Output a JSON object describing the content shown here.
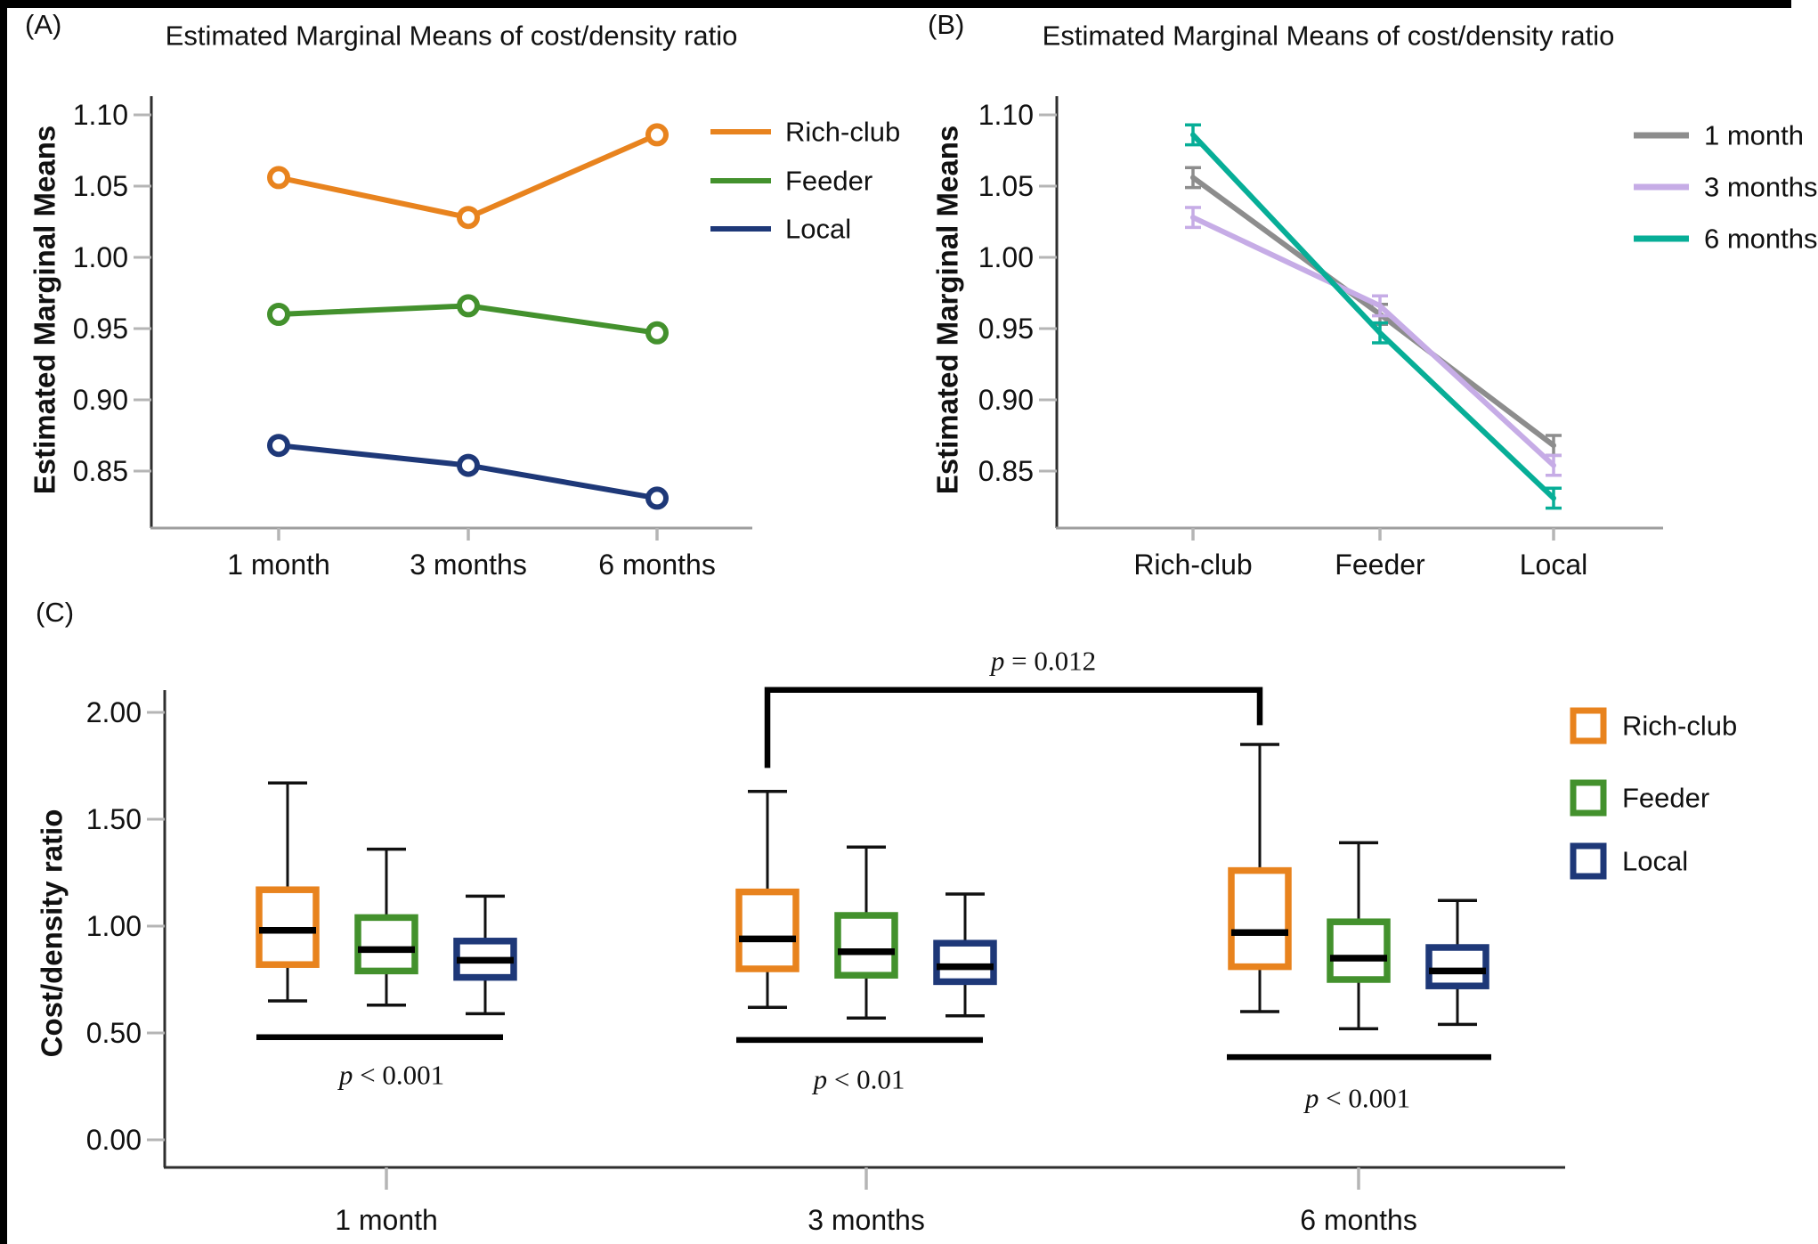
{
  "figure": {
    "panels": {
      "a": {
        "label": "(A)"
      },
      "b": {
        "label": "(B)"
      },
      "c": {
        "label": "(C)"
      }
    }
  },
  "colors": {
    "rich_club": "#E8831E",
    "feeder": "#43912D",
    "local": "#1E3878",
    "one_month": "#8D8D8D",
    "three_months": "#C6ACE6",
    "six_months": "#07AE97",
    "axis_dark": "#2e2e2e",
    "axis_gray": "#9e9e9e",
    "tick_gray": "#b5b5b5",
    "median_black": "#000000"
  },
  "chart_data": [
    {
      "id": "A",
      "type": "line",
      "title": "Estimated Marginal Means of cost/density ratio",
      "ylabel": "Estimated Marginal Means",
      "xlabel": "",
      "categories": [
        "1 month",
        "3 months",
        "6 months"
      ],
      "ylim": [
        0.81,
        1.11
      ],
      "grid": false,
      "legend_position": "right",
      "marker": "open-circle",
      "yticks": [
        {
          "v": 1.1,
          "label": "1.10"
        },
        {
          "v": 1.05,
          "label": "1.05"
        },
        {
          "v": 1.0,
          "label": "1.00"
        },
        {
          "v": 0.95,
          "label": "0.95"
        },
        {
          "v": 0.9,
          "label": "0.90"
        },
        {
          "v": 0.85,
          "label": "0.85"
        }
      ],
      "series": [
        {
          "name": "Rich-club",
          "color_key": "rich_club",
          "values": [
            1.056,
            1.028,
            1.086
          ]
        },
        {
          "name": "Feeder",
          "color_key": "feeder",
          "values": [
            0.96,
            0.966,
            0.947
          ]
        },
        {
          "name": "Local",
          "color_key": "local",
          "values": [
            0.868,
            0.854,
            0.831
          ]
        }
      ]
    },
    {
      "id": "B",
      "type": "line",
      "title": "Estimated Marginal Means of cost/density ratio",
      "ylabel": "Estimated Marginal Means",
      "xlabel": "",
      "categories": [
        "Rich-club",
        "Feeder",
        "Local"
      ],
      "ylim": [
        0.81,
        1.11
      ],
      "grid": false,
      "legend_position": "right",
      "marker": "error-caps",
      "error": 0.007,
      "yticks": [
        {
          "v": 1.1,
          "label": "1.10"
        },
        {
          "v": 1.05,
          "label": "1.05"
        },
        {
          "v": 1.0,
          "label": "1.00"
        },
        {
          "v": 0.95,
          "label": "0.95"
        },
        {
          "v": 0.9,
          "label": "0.90"
        },
        {
          "v": 0.85,
          "label": "0.85"
        }
      ],
      "series": [
        {
          "name": "1 month",
          "color_key": "one_month",
          "values": [
            1.056,
            0.96,
            0.868
          ]
        },
        {
          "name": "3 months",
          "color_key": "three_months",
          "values": [
            1.028,
            0.966,
            0.854
          ]
        },
        {
          "name": "6 months",
          "color_key": "six_months",
          "values": [
            1.086,
            0.947,
            0.831
          ]
        }
      ]
    },
    {
      "id": "C",
      "type": "boxplot",
      "title": "",
      "ylabel": "Cost/density ratio",
      "xlabel": "",
      "categories": [
        "1 month",
        "3 months",
        "6 months"
      ],
      "ylim": [
        -0.13,
        2.1
      ],
      "grid": false,
      "legend_position": "right",
      "yticks": [
        {
          "v": 2.0,
          "label": "2.00"
        },
        {
          "v": 1.5,
          "label": "1.50"
        },
        {
          "v": 1.0,
          "label": "1.00"
        },
        {
          "v": 0.5,
          "label": "0.50"
        },
        {
          "v": 0.0,
          "label": "0.00"
        }
      ],
      "series": [
        {
          "name": "Rich-club",
          "color_key": "rich_club",
          "boxes": [
            {
              "min": 0.65,
              "q1": 0.82,
              "median": 0.98,
              "q3": 1.17,
              "max": 1.67
            },
            {
              "min": 0.62,
              "q1": 0.8,
              "median": 0.94,
              "q3": 1.16,
              "max": 1.63
            },
            {
              "min": 0.6,
              "q1": 0.81,
              "median": 0.97,
              "q3": 1.26,
              "max": 1.85
            }
          ]
        },
        {
          "name": "Feeder",
          "color_key": "feeder",
          "boxes": [
            {
              "min": 0.63,
              "q1": 0.79,
              "median": 0.89,
              "q3": 1.04,
              "max": 1.36
            },
            {
              "min": 0.57,
              "q1": 0.77,
              "median": 0.88,
              "q3": 1.05,
              "max": 1.37
            },
            {
              "min": 0.52,
              "q1": 0.75,
              "median": 0.85,
              "q3": 1.02,
              "max": 1.39
            }
          ]
        },
        {
          "name": "Local",
          "color_key": "local",
          "boxes": [
            {
              "min": 0.59,
              "q1": 0.76,
              "median": 0.84,
              "q3": 0.93,
              "max": 1.14
            },
            {
              "min": 0.58,
              "q1": 0.74,
              "median": 0.81,
              "q3": 0.92,
              "max": 1.15
            },
            {
              "min": 0.54,
              "q1": 0.72,
              "median": 0.79,
              "q3": 0.9,
              "max": 1.12
            }
          ]
        }
      ],
      "significance": {
        "within_groups": [
          {
            "group_index": 0,
            "label": "p < 0.001",
            "bar_value": 0.48,
            "bar_x": [
              288,
              565
            ],
            "label_at": [
              440,
              1207
            ]
          },
          {
            "group_index": 1,
            "label": "p < 0.01",
            "bar_value": 0.467,
            "bar_x": [
              827,
              1104
            ],
            "label_at": [
              965,
              1212
            ]
          },
          {
            "group_index": 2,
            "label": "p < 0.001",
            "bar_value": 0.387,
            "bar_x": [
              1378,
              1675
            ],
            "label_at": [
              1525,
              1233
            ]
          }
        ],
        "between_groups": {
          "label": "p = 0.012",
          "connects": [
            "3 months Rich-club",
            "6 months Rich-club"
          ],
          "x": [
            862,
            1415
          ],
          "top_value": 2.105,
          "leg_end_values": [
            1.74,
            1.94
          ],
          "label_at": [
            1172,
            742
          ]
        }
      }
    }
  ]
}
